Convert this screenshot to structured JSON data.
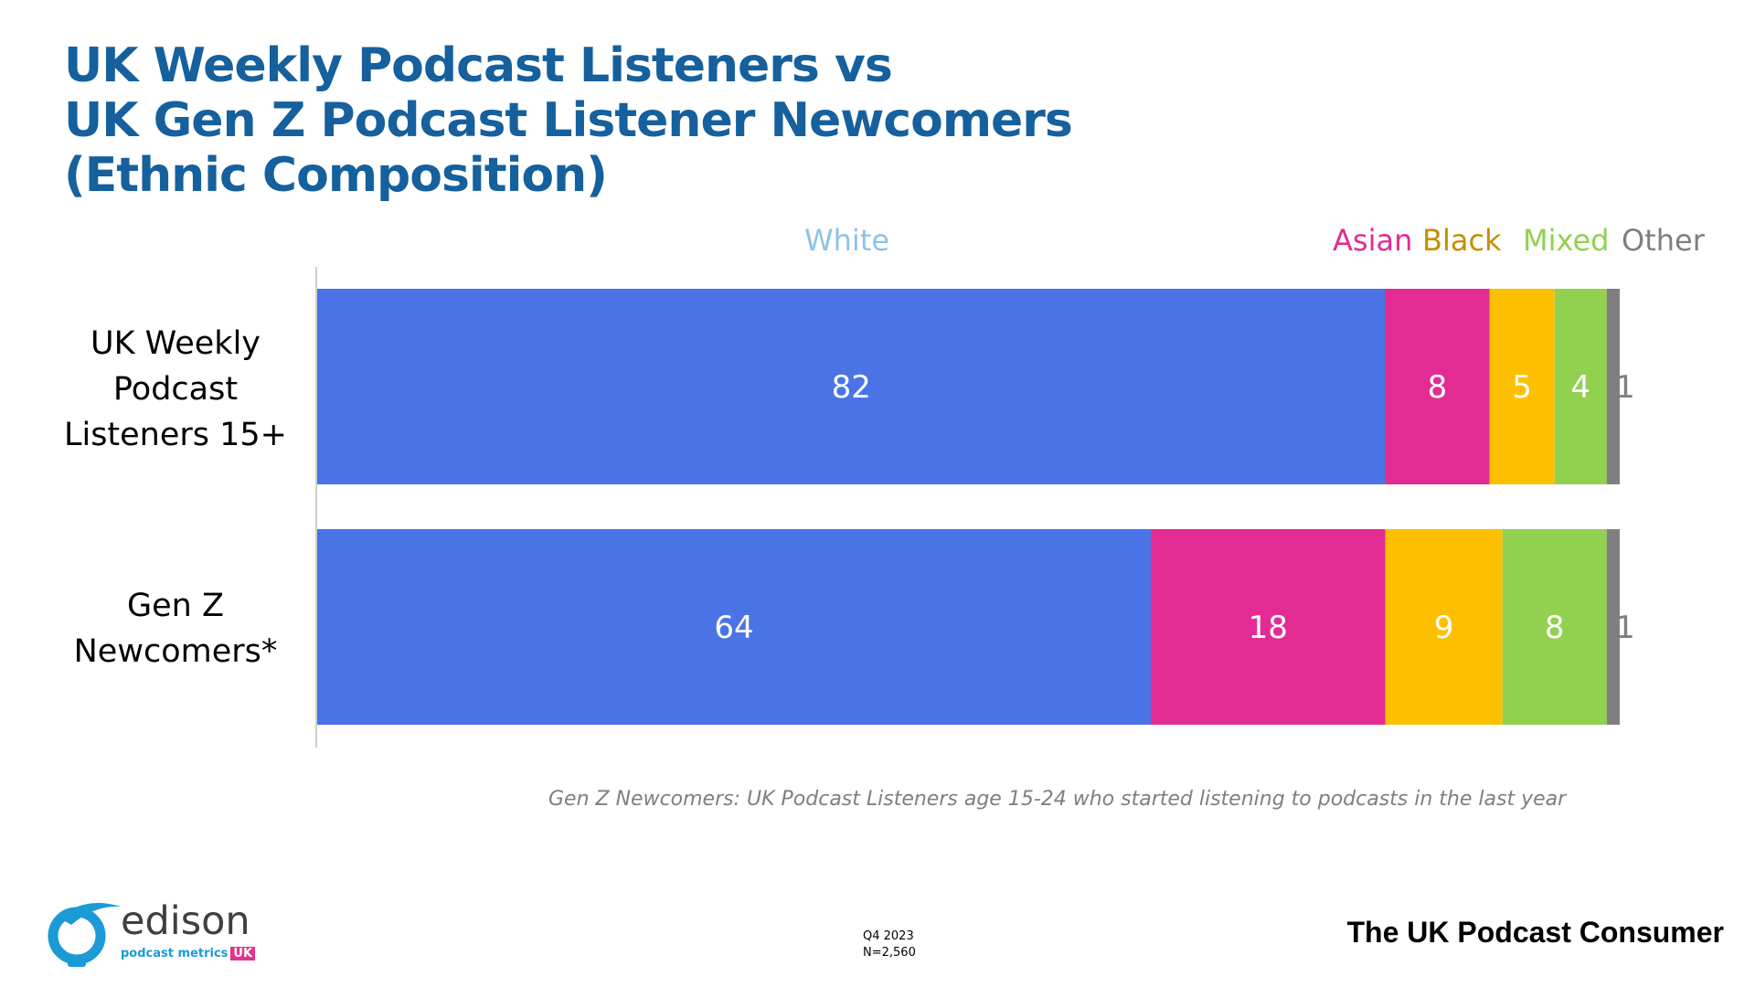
{
  "title_lines": [
    "UK Weekly Podcast Listeners vs",
    "UK Gen Z Podcast Listener Newcomers",
    "(Ethnic Composition)"
  ],
  "chart_data": {
    "type": "bar",
    "orientation": "horizontal",
    "stacked": true,
    "categories": [
      "UK Weekly Podcast Listeners 15+",
      "Gen Z Newcomers*"
    ],
    "category_label_lines": [
      [
        "UK Weekly",
        "Podcast",
        "Listeners 15+"
      ],
      [
        "Gen Z",
        "Newcomers*"
      ]
    ],
    "series": [
      {
        "name": "White",
        "values": [
          82,
          64
        ],
        "color": "#4a74e6",
        "legend_color": "#8ec3e6",
        "label_color": "#ffffff"
      },
      {
        "name": "Asian",
        "values": [
          8,
          18
        ],
        "color": "#e32c93",
        "legend_color": "#e32c93",
        "label_color": "#ffffff"
      },
      {
        "name": "Black",
        "values": [
          5,
          9
        ],
        "color": "#fdc000",
        "legend_color": "#c58e00",
        "label_color": "#ffffff"
      },
      {
        "name": "Mixed",
        "values": [
          4,
          8
        ],
        "color": "#92d050",
        "legend_color": "#92d050",
        "label_color": "#ffffff"
      },
      {
        "name": "Other",
        "values": [
          1,
          1
        ],
        "color": "#7f7f7f",
        "legend_color": "#7f7f7f",
        "label_color": "#7f7f7f"
      }
    ],
    "xlim": [
      0,
      100
    ],
    "grid": false,
    "legend_position": "top"
  },
  "footnote": "Gen Z Newcomers: UK Podcast Listeners age 15-24 who started listening to podcasts in the last year",
  "logo": {
    "word": "edison",
    "sub": "podcast metrics",
    "badge": "UK"
  },
  "meta": {
    "period": "Q4 2023",
    "sample": "N=2,560"
  },
  "brand_footer": "The UK Podcast Consumer"
}
